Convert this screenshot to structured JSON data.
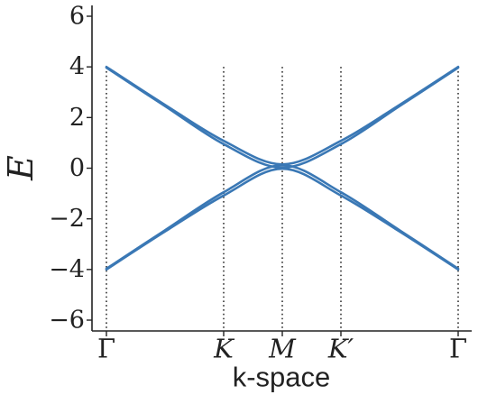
{
  "chart_data": {
    "type": "line",
    "xlabel": "k-space",
    "ylabel": "E",
    "ylim": [
      -6.5,
      6.5
    ],
    "yticks": [
      -6,
      -4,
      -2,
      0,
      2,
      4,
      6
    ],
    "ytick_labels": [
      "−6",
      "−4",
      "−2",
      "0",
      "2",
      "4",
      "6"
    ],
    "symmetry_points": [
      {
        "label": "Γ",
        "x": 0,
        "italic": false
      },
      {
        "label": "K",
        "x": 1,
        "italic": true
      },
      {
        "label": "M",
        "x": 1.5,
        "italic": true
      },
      {
        "label": "K′",
        "x": 2,
        "italic": true
      },
      {
        "label": "Γ",
        "x": 3,
        "italic": false
      }
    ],
    "xlim": [
      0,
      3
    ],
    "grid": false,
    "line_color": "#3a78b5",
    "series": [
      {
        "points": [
          [
            0,
            4.0
          ],
          [
            0.5,
            2.5
          ],
          [
            1.0,
            1.08
          ],
          [
            1.5,
            0.15
          ],
          [
            2.0,
            1.08
          ],
          [
            2.5,
            2.5
          ],
          [
            3.0,
            4.0
          ]
        ]
      },
      {
        "points": [
          [
            0,
            3.97
          ],
          [
            0.5,
            2.45
          ],
          [
            1.0,
            0.95
          ],
          [
            1.5,
            0.02
          ],
          [
            2.0,
            0.95
          ],
          [
            2.5,
            2.45
          ],
          [
            3.0,
            3.97
          ]
        ]
      },
      {
        "points": [
          [
            0,
            -3.97
          ],
          [
            0.5,
            -2.45
          ],
          [
            1.0,
            -0.95
          ],
          [
            1.5,
            0.12
          ],
          [
            2.0,
            -0.95
          ],
          [
            2.5,
            -2.45
          ],
          [
            3.0,
            -3.97
          ]
        ]
      },
      {
        "points": [
          [
            0,
            -4.0
          ],
          [
            0.5,
            -2.5
          ],
          [
            1.0,
            -1.08
          ],
          [
            1.5,
            -0.02
          ],
          [
            2.0,
            -1.08
          ],
          [
            2.5,
            -2.5
          ],
          [
            3.0,
            -4.0
          ]
        ]
      }
    ]
  }
}
